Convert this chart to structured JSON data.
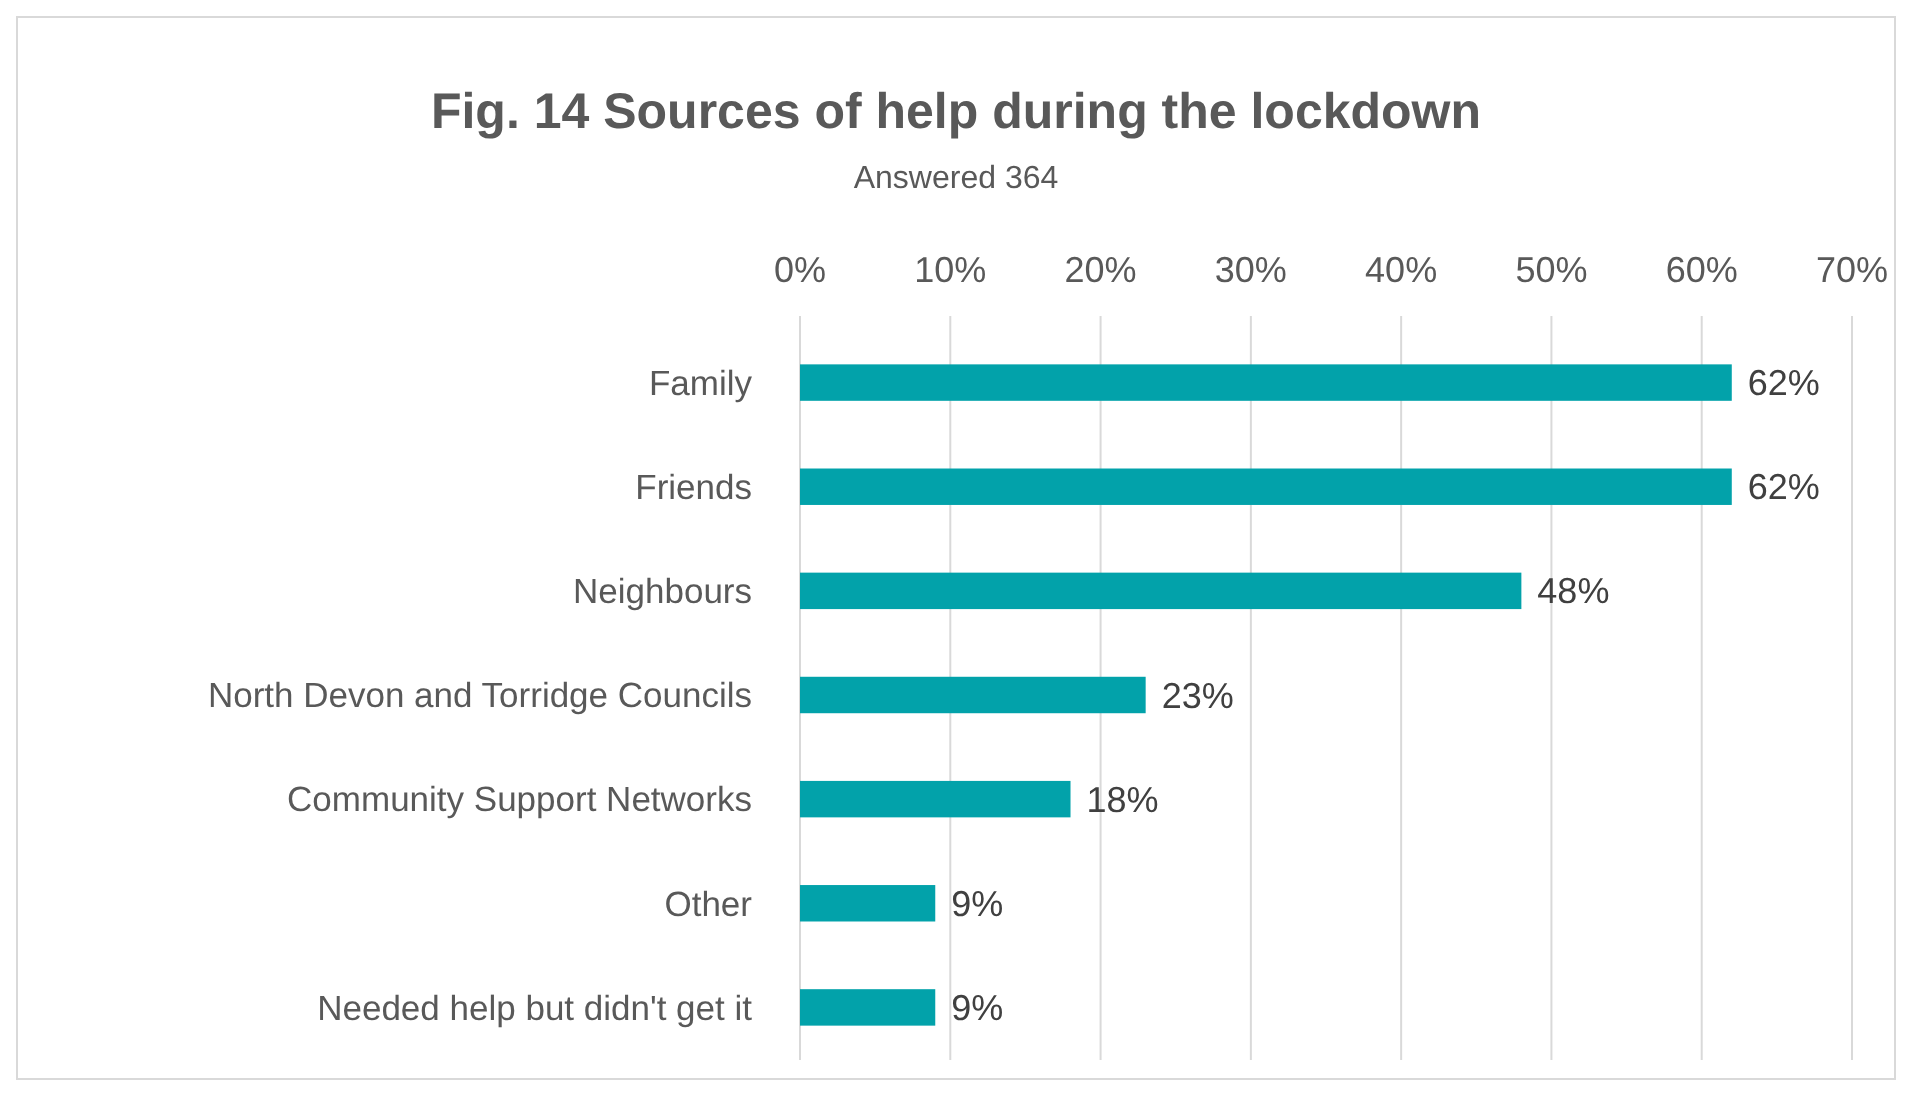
{
  "chart_data": {
    "type": "bar",
    "orientation": "horizontal",
    "title": "Fig. 14 Sources of help during the lockdown",
    "subtitle": "Answered 364",
    "categories": [
      "Family",
      "Friends",
      "Neighbours",
      "North Devon and Torridge Councils",
      "Community Support Networks",
      "Other",
      "Needed help but didn't get it"
    ],
    "values": [
      62,
      62,
      48,
      23,
      18,
      9,
      9
    ],
    "value_labels": [
      "62%",
      "62%",
      "48%",
      "23%",
      "18%",
      "9%",
      "9%"
    ],
    "color": "#02a2aa",
    "xlim": [
      0,
      70
    ],
    "xticks": [
      {
        "value": 0,
        "label": "0%"
      },
      {
        "value": 10,
        "label": "10%"
      },
      {
        "value": 20,
        "label": "20%"
      },
      {
        "value": 30,
        "label": "30%"
      },
      {
        "value": 40,
        "label": "40%"
      },
      {
        "value": 50,
        "label": "50%"
      },
      {
        "value": 60,
        "label": "60%"
      },
      {
        "value": 70,
        "label": "70%"
      }
    ],
    "grid": "x"
  }
}
